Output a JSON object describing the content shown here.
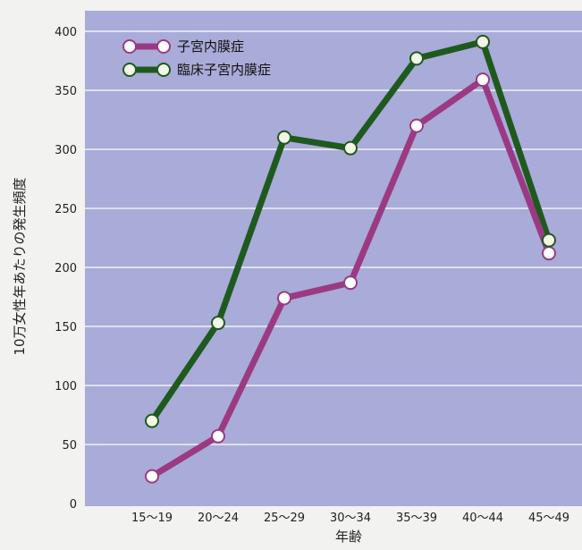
{
  "chart_data": {
    "type": "line",
    "xlabel": "年齢",
    "ylabel": "10万女性年あたりの発生頻度",
    "categories": [
      "15〜19",
      "20〜24",
      "25〜29",
      "30〜34",
      "35〜39",
      "40〜44",
      "45〜49"
    ],
    "ylim": [
      0,
      400
    ],
    "yticks": [
      0,
      50,
      100,
      150,
      200,
      250,
      300,
      350,
      400
    ],
    "grid": true,
    "legend_position": "top-left",
    "series": [
      {
        "name": "子宮内膜症",
        "color": "#9b3a82",
        "values": [
          23,
          57,
          174,
          187,
          320,
          359,
          212
        ]
      },
      {
        "name": "臨床子宮内膜症",
        "color": "#1e5a1e",
        "values": [
          70,
          153,
          310,
          301,
          377,
          391,
          223
        ]
      }
    ],
    "colors": {
      "plot_background": "#a9abd8",
      "gridline": "#ffffff"
    }
  }
}
